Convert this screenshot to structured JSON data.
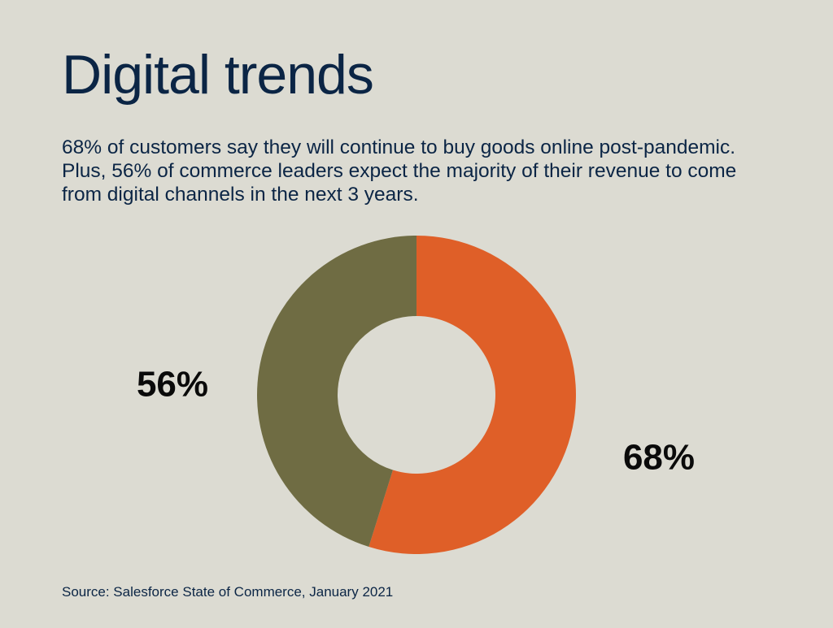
{
  "title": "Digital trends",
  "intro": "68% of customers say they will continue to buy goods online post-pandemic. Plus, 56% of commerce leaders expect the majority of their revenue to come from digital channels in the next 3 years.",
  "source": "Source: Salesforce State of Commerce, January 2021",
  "colors": {
    "background": "#dcdbd2",
    "text": "#0b2545",
    "label": "#0a0a0a"
  },
  "chart_data": {
    "type": "pie",
    "donut": true,
    "title": "",
    "legend": "none",
    "slices": [
      {
        "label": "68%",
        "value": 68,
        "color": "#df5f28"
      },
      {
        "label": "56%",
        "value": 56,
        "color": "#6f6c43"
      }
    ]
  }
}
